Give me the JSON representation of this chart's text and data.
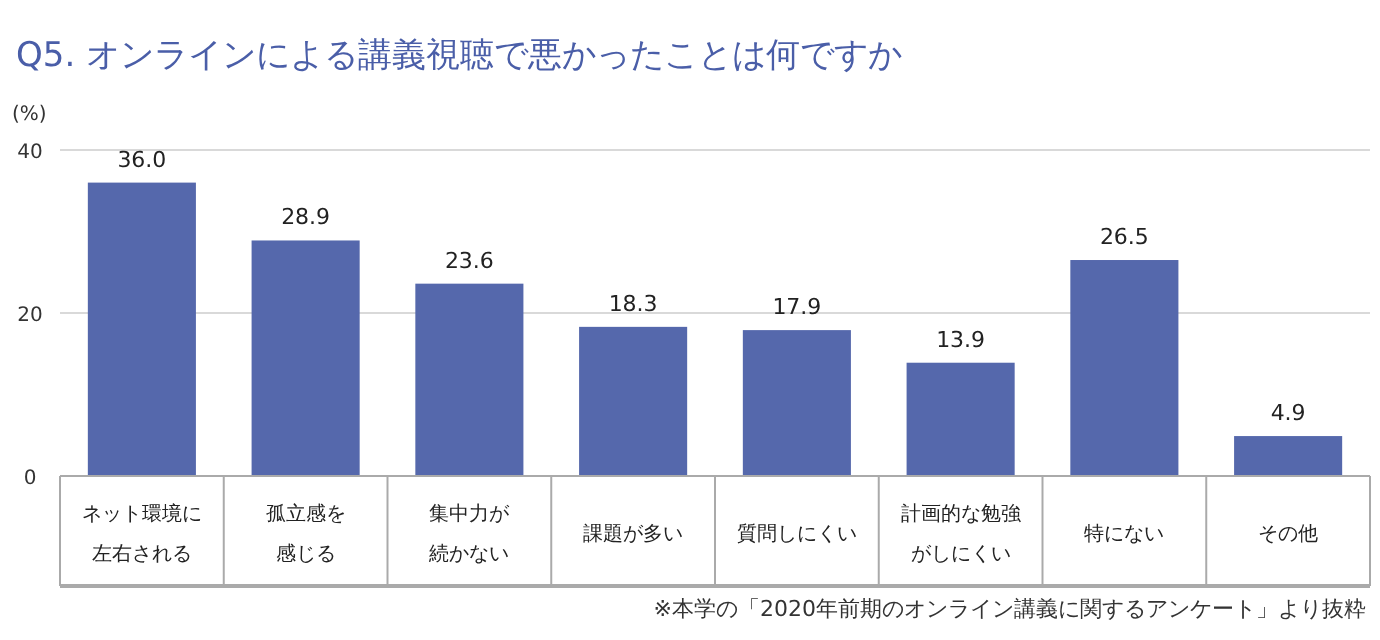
{
  "chart_data": {
    "type": "bar",
    "title": "Q5. オンラインによる講義視聴で悪かったことは何ですか",
    "ylabel": "(%)",
    "categories": [
      "ネット環境に左右される",
      "孤立感を感じる",
      "集中力が続かない",
      "課題が多い",
      "質問しにくい",
      "計画的な勉強がしにくい",
      "特にない",
      "その他"
    ],
    "values": [
      36.0,
      28.9,
      23.6,
      18.3,
      17.9,
      13.9,
      26.5,
      4.9
    ],
    "value_labels": [
      "36.0",
      "28.9",
      "23.6",
      "18.3",
      "17.9",
      "13.9",
      "26.5",
      "4.9"
    ],
    "color": "#5568ac",
    "ylim": [
      0,
      40
    ],
    "yticks": [
      0,
      20,
      40
    ],
    "grid": "y",
    "annotations": [
      "※本学の「2020年前期のオンライン講義に関するアンケート」より抜粋"
    ]
  }
}
